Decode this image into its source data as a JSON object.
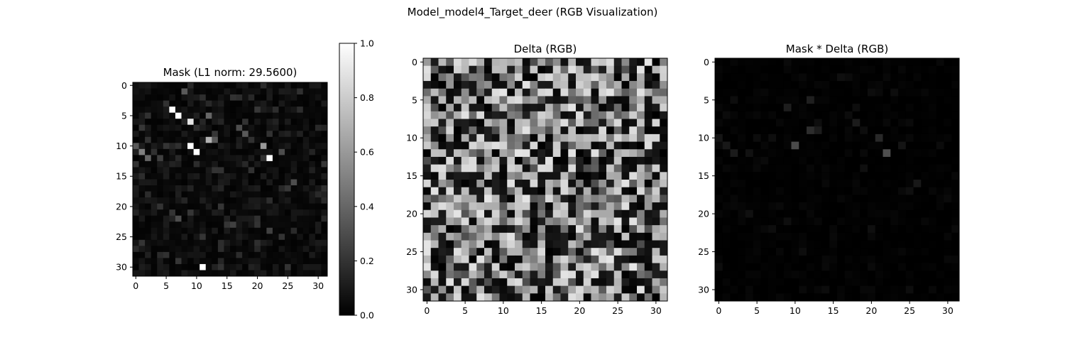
{
  "figure": {
    "suptitle": "Model_model4_Target_deer (RGB Visualization)"
  },
  "chart_data": [
    {
      "type": "heatmap",
      "title": "Mask (L1 norm: 29.5600)",
      "rows": 32,
      "cols": 32,
      "colormap": "gray",
      "xlim": [
        -0.5,
        31.5
      ],
      "ylim": [
        31.5,
        -0.5
      ],
      "xticks": [
        "0",
        "5",
        "10",
        "15",
        "20",
        "25",
        "30"
      ],
      "yticks": [
        "0",
        "5",
        "10",
        "15",
        "20",
        "25",
        "30"
      ],
      "background_level": 0.04,
      "highlights": [
        {
          "row": 4,
          "col": 6,
          "value": 1.0
        },
        {
          "row": 5,
          "col": 7,
          "value": 1.0
        },
        {
          "row": 6,
          "col": 9,
          "value": 0.9
        },
        {
          "row": 10,
          "col": 9,
          "value": 1.0
        },
        {
          "row": 11,
          "col": 10,
          "value": 1.0
        },
        {
          "row": 12,
          "col": 22,
          "value": 1.0
        },
        {
          "row": 30,
          "col": 11,
          "value": 1.0
        },
        {
          "row": 9,
          "col": 12,
          "value": 0.7
        },
        {
          "row": 10,
          "col": 21,
          "value": 0.6
        },
        {
          "row": 11,
          "col": 1,
          "value": 0.5
        },
        {
          "row": 12,
          "col": 2,
          "value": 0.4
        },
        {
          "row": 10,
          "col": 0,
          "value": 0.35
        },
        {
          "row": 1,
          "col": 8,
          "value": 0.35
        },
        {
          "row": 5,
          "col": 12,
          "value": 0.4
        },
        {
          "row": 8,
          "col": 18,
          "value": 0.35
        },
        {
          "row": 7,
          "col": 17,
          "value": 0.3
        },
        {
          "row": 9,
          "col": 13,
          "value": 0.35
        },
        {
          "row": 12,
          "col": 4,
          "value": 0.25
        },
        {
          "row": 11,
          "col": 24,
          "value": 0.3
        },
        {
          "row": 16,
          "col": 26,
          "value": 0.3
        },
        {
          "row": 23,
          "col": 16,
          "value": 0.25
        },
        {
          "row": 24,
          "col": 22,
          "value": 0.25
        },
        {
          "row": 22,
          "col": 7,
          "value": 0.3
        },
        {
          "row": 20,
          "col": 4,
          "value": 0.2
        },
        {
          "row": 14,
          "col": 13,
          "value": 0.2
        }
      ]
    },
    {
      "type": "heatmap",
      "title": "Delta (RGB)",
      "rows": 32,
      "cols": 32,
      "colormap": "gray",
      "xlim": [
        -0.5,
        31.5
      ],
      "ylim": [
        31.5,
        -0.5
      ],
      "xticks": [
        "0",
        "5",
        "10",
        "15",
        "20",
        "25",
        "30"
      ],
      "yticks": [
        "0",
        "5",
        "10",
        "15",
        "20",
        "25",
        "30"
      ],
      "value_distribution": "random mix of near-black, mid-gray and light-gray cells"
    },
    {
      "type": "heatmap",
      "title": "Mask * Delta (RGB)",
      "rows": 32,
      "cols": 32,
      "colormap": "gray",
      "xlim": [
        -0.5,
        31.5
      ],
      "ylim": [
        31.5,
        -0.5
      ],
      "xticks": [
        "0",
        "5",
        "10",
        "15",
        "20",
        "25",
        "30"
      ],
      "yticks": [
        "0",
        "5",
        "10",
        "15",
        "20",
        "25",
        "30"
      ],
      "value_distribution": "almost entirely black with faint gray cells near top-left"
    }
  ],
  "colorbar": {
    "min": 0.0,
    "max": 1.0,
    "ticks": [
      "0.0",
      "0.2",
      "0.4",
      "0.6",
      "0.8",
      "1.0"
    ],
    "colormap": "gray"
  }
}
